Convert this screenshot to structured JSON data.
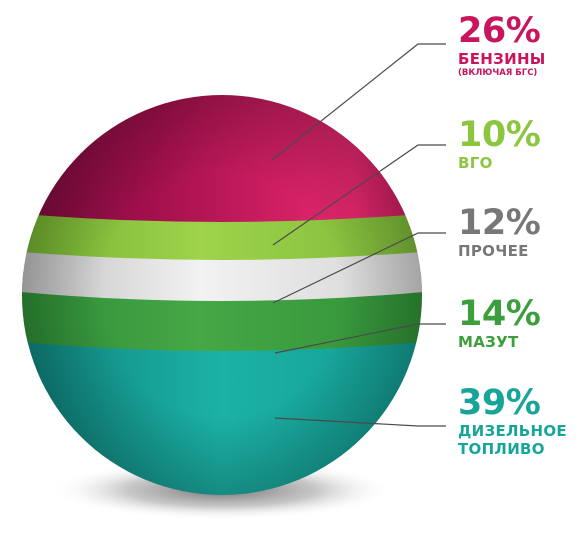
{
  "chart_data": {
    "type": "pie",
    "title": "",
    "segments": [
      {
        "value": 26,
        "value_label": "26%",
        "label": "БЕНЗИНЫ",
        "note": "(ВКЛЮЧАЯ БГС)",
        "color": "#c8155e"
      },
      {
        "value": 10,
        "value_label": "10%",
        "label": "ВГО",
        "note": "",
        "color": "#8cc63f"
      },
      {
        "value": 12,
        "value_label": "12%",
        "label": "ПРОЧЕЕ",
        "note": "",
        "color": "#777777"
      },
      {
        "value": 14,
        "value_label": "14%",
        "label": "МАЗУТ",
        "note": "",
        "color": "#3c9e3c"
      },
      {
        "value": 39,
        "value_label": "39%",
        "label": "ДИЗЕЛЬНОЕ\nТОПЛИВО",
        "note": "",
        "color": "#17a499"
      }
    ]
  }
}
